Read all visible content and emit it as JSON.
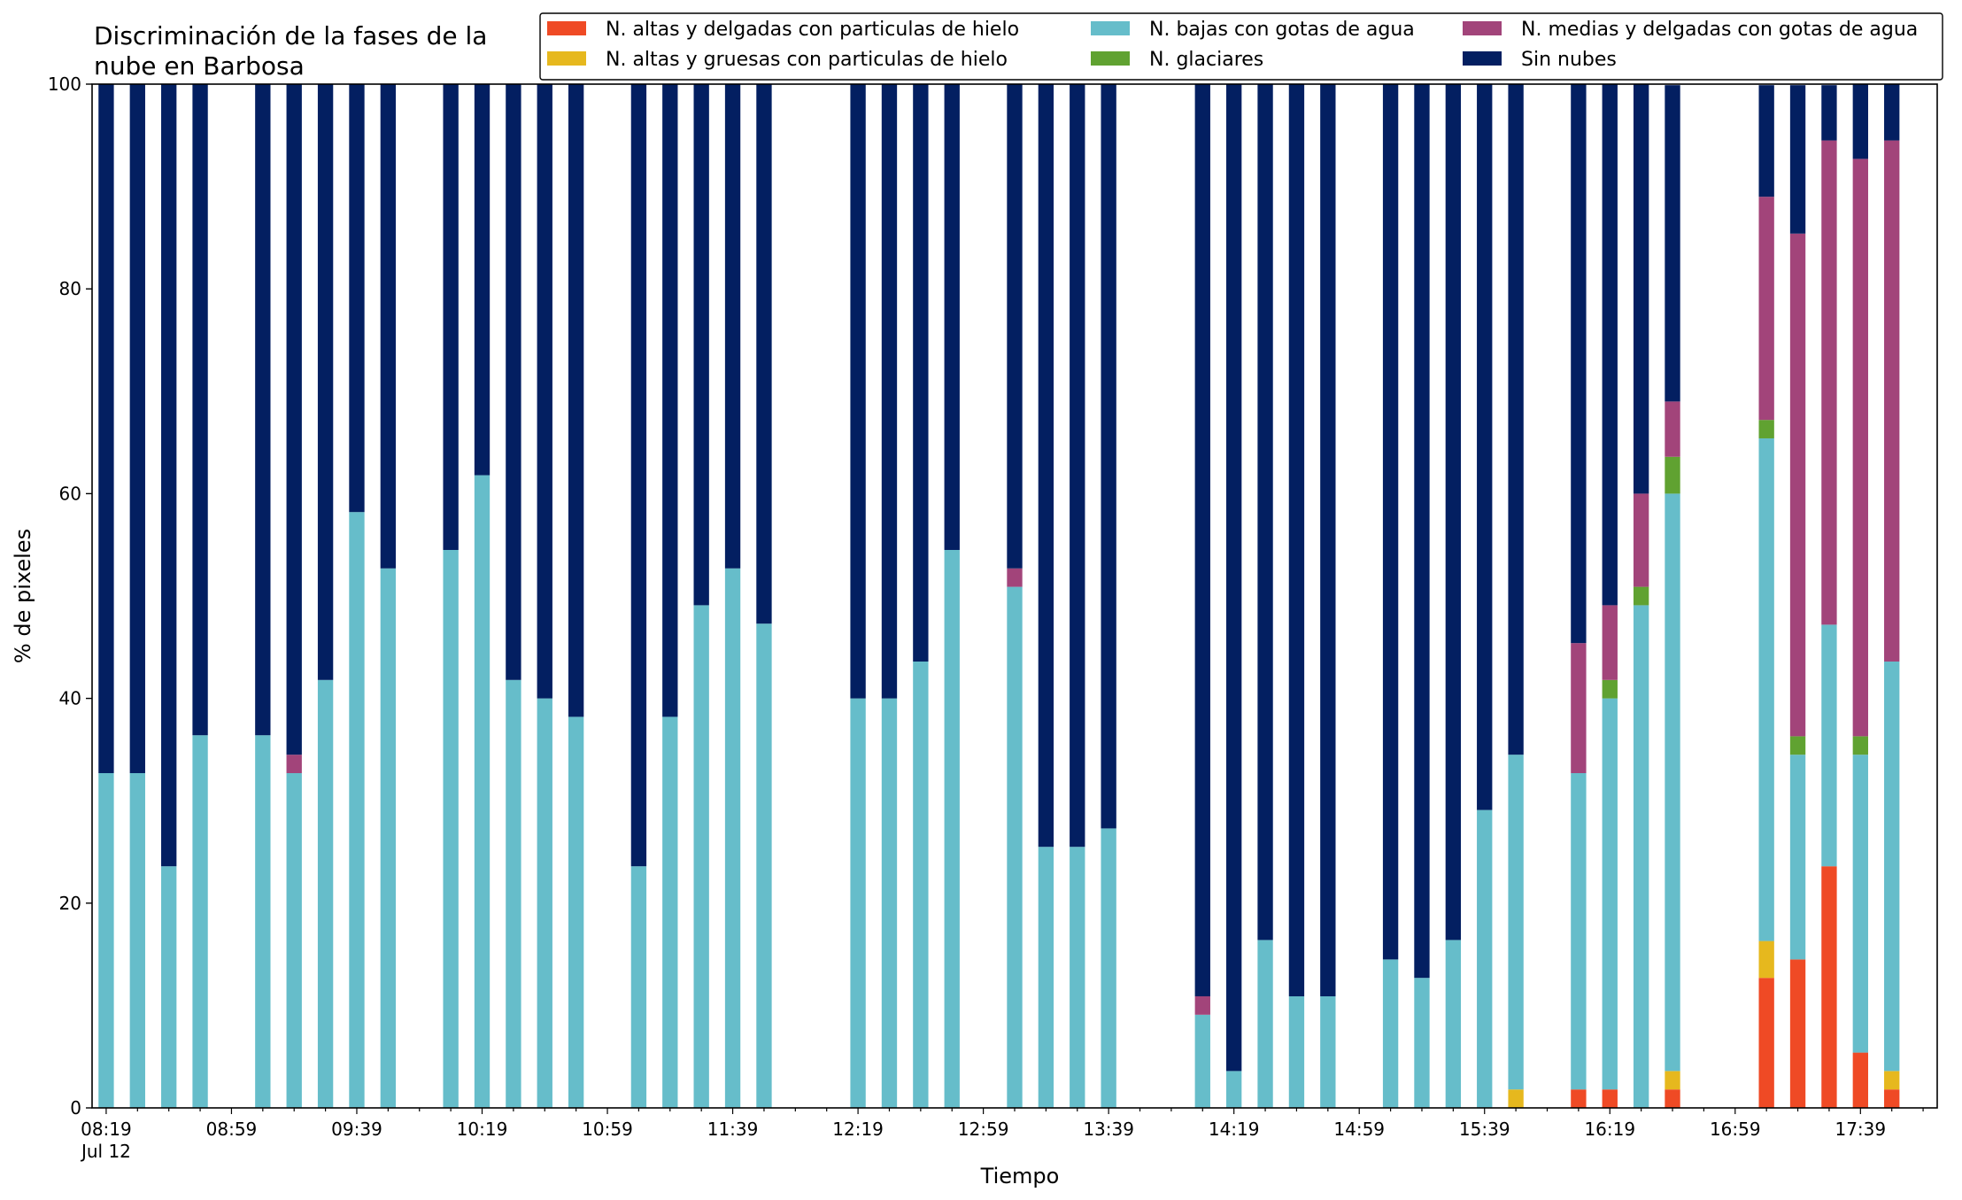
{
  "chart_data": {
    "type": "bar",
    "stacked": true,
    "title": "Discriminación de la fases de la nube en Barbosa",
    "title_lines": [
      "Discriminación de la fases de la",
      "nube en Barbosa"
    ],
    "xlabel": "Tiempo",
    "ylabel": "% de pixeles",
    "ylim": [
      0,
      100
    ],
    "yticks": [
      "0",
      "20",
      "40",
      "60",
      "80",
      "100"
    ],
    "xlim_minutes_from_0819": [
      -4.5,
      584.5
    ],
    "xticks": [
      {
        "label": "08:19",
        "sublabel": "Jul 12",
        "minutes_from_0819": 0
      },
      {
        "label": "08:59",
        "minutes_from_0819": 40
      },
      {
        "label": "09:39",
        "minutes_from_0819": 80
      },
      {
        "label": "10:19",
        "minutes_from_0819": 120
      },
      {
        "label": "10:59",
        "minutes_from_0819": 160
      },
      {
        "label": "11:39",
        "minutes_from_0819": 200
      },
      {
        "label": "12:19",
        "minutes_from_0819": 240
      },
      {
        "label": "12:59",
        "minutes_from_0819": 280
      },
      {
        "label": "13:39",
        "minutes_from_0819": 320
      },
      {
        "label": "14:19",
        "minutes_from_0819": 360
      },
      {
        "label": "14:59",
        "minutes_from_0819": 400
      },
      {
        "label": "15:39",
        "minutes_from_0819": 440
      },
      {
        "label": "16:19",
        "minutes_from_0819": 480
      },
      {
        "label": "16:59",
        "minutes_from_0819": 520
      },
      {
        "label": "17:39",
        "minutes_from_0819": 560
      }
    ],
    "grid": false,
    "legend_position": "top-right",
    "legend_columns": 3,
    "x": [
      "08:19",
      "08:29",
      "08:39",
      "08:49",
      "09:09",
      "09:19",
      "09:29",
      "09:39",
      "09:49",
      "10:09",
      "10:19",
      "10:29",
      "10:39",
      "10:49",
      "11:09",
      "11:19",
      "11:29",
      "11:39",
      "11:49",
      "12:19",
      "12:29",
      "12:39",
      "12:49",
      "13:09",
      "13:19",
      "13:29",
      "13:39",
      "14:09",
      "14:19",
      "14:29",
      "14:39",
      "14:49",
      "15:09",
      "15:19",
      "15:29",
      "15:39",
      "15:49",
      "16:09",
      "16:19",
      "16:29",
      "16:39",
      "17:09",
      "17:19",
      "17:29",
      "17:39",
      "17:49"
    ],
    "x_minutes_from_0819": [
      0,
      10,
      20,
      30,
      50,
      60,
      70,
      80,
      90,
      110,
      120,
      130,
      140,
      150,
      170,
      180,
      190,
      200,
      210,
      240,
      250,
      260,
      270,
      290,
      300,
      310,
      320,
      350,
      360,
      370,
      380,
      390,
      410,
      420,
      430,
      440,
      450,
      470,
      480,
      490,
      500,
      530,
      540,
      550,
      560,
      570
    ],
    "series": [
      {
        "name": "N. altas y delgadas con particulas de hielo",
        "color": "#ef4a25",
        "values": [
          0,
          0,
          0,
          0,
          0,
          0,
          0,
          0,
          0,
          0,
          0,
          0,
          0,
          0,
          0,
          0,
          0,
          0,
          0,
          0,
          0,
          0,
          0,
          0,
          0,
          0,
          0,
          0,
          0,
          0,
          0,
          0,
          0,
          0,
          0,
          0,
          0,
          1.8,
          1.8,
          0,
          1.8,
          12.7,
          14.5,
          23.6,
          5.4,
          1.8
        ]
      },
      {
        "name": "N. altas y gruesas con particulas de hielo",
        "color": "#e6b81e",
        "values": [
          0,
          0,
          0,
          0,
          0,
          0,
          0,
          0,
          0,
          0,
          0,
          0,
          0,
          0,
          0,
          0,
          0,
          0,
          0,
          0,
          0,
          0,
          0,
          0,
          0,
          0,
          0,
          0,
          0,
          0,
          0,
          0,
          0,
          0,
          0,
          0,
          1.8,
          0,
          0,
          0,
          1.8,
          3.6,
          0,
          0,
          0,
          1.8
        ]
      },
      {
        "name": "N. bajas con gotas de agua",
        "color": "#66bdca",
        "values": [
          32.7,
          32.7,
          23.6,
          36.4,
          36.4,
          32.7,
          41.8,
          58.2,
          52.7,
          54.5,
          61.8,
          41.8,
          40.0,
          38.2,
          23.6,
          38.2,
          49.1,
          52.7,
          47.3,
          40.0,
          40.0,
          43.6,
          54.5,
          50.9,
          25.5,
          25.5,
          27.3,
          9.1,
          3.6,
          16.4,
          10.9,
          10.9,
          14.5,
          12.7,
          16.4,
          29.1,
          32.7,
          30.9,
          38.2,
          49.1,
          56.4,
          49.1,
          20.0,
          23.6,
          29.1,
          40.0
        ]
      },
      {
        "name": "N. glaciares",
        "color": "#60a231",
        "values": [
          0,
          0,
          0,
          0,
          0,
          0,
          0,
          0,
          0,
          0,
          0,
          0,
          0,
          0,
          0,
          0,
          0,
          0,
          0,
          0,
          0,
          0,
          0,
          0,
          0,
          0,
          0,
          0,
          0,
          0,
          0,
          0,
          0,
          0,
          0,
          0,
          0,
          0,
          1.8,
          1.8,
          3.6,
          1.8,
          1.8,
          0,
          1.8,
          0
        ]
      },
      {
        "name": "N. medias y delgadas con gotas de agua",
        "color": "#a2447a",
        "values": [
          0,
          0,
          0,
          0,
          0,
          1.8,
          0,
          0,
          0,
          0,
          0,
          0,
          0,
          0,
          0,
          0,
          0,
          0,
          0,
          0,
          0,
          0,
          0,
          1.8,
          0,
          0,
          0,
          1.8,
          0,
          0,
          0,
          0,
          0,
          0,
          0,
          0,
          0,
          12.7,
          7.3,
          9.1,
          5.4,
          21.8,
          49.1,
          47.3,
          56.4,
          50.9
        ]
      },
      {
        "name": "Sin nubes",
        "color": "#031f61",
        "values": [
          67.3,
          67.3,
          76.4,
          63.6,
          63.6,
          65.5,
          58.2,
          41.8,
          47.3,
          45.5,
          38.2,
          58.2,
          60.0,
          61.8,
          76.4,
          61.8,
          50.9,
          47.3,
          52.7,
          60.0,
          60.0,
          56.4,
          45.5,
          47.3,
          74.5,
          74.5,
          72.7,
          89.1,
          96.4,
          83.6,
          89.1,
          89.1,
          85.5,
          87.3,
          83.6,
          70.9,
          65.5,
          54.6,
          50.9,
          40.0,
          30.9,
          10.9,
          14.5,
          5.4,
          7.3,
          5.5
        ]
      }
    ]
  }
}
